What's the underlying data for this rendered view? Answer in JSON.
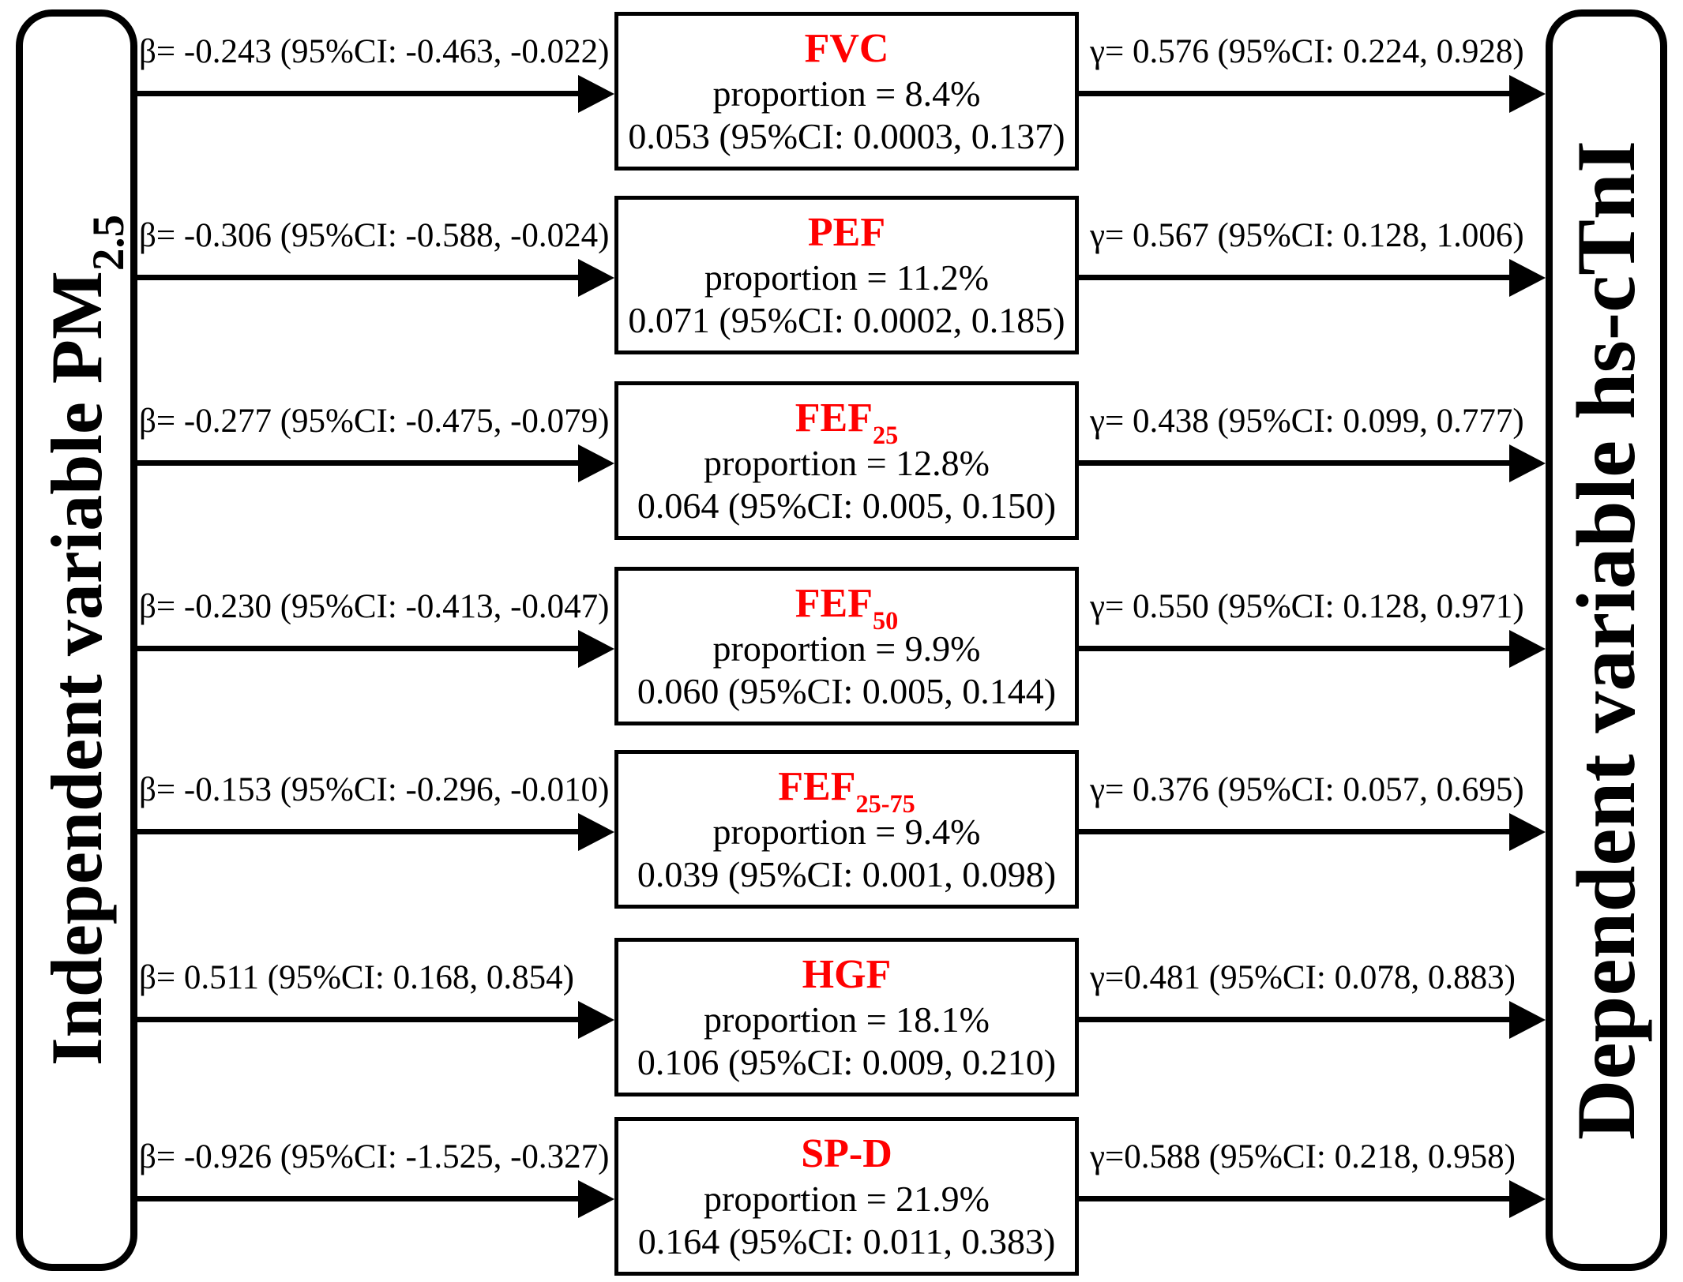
{
  "figure": {
    "independent_variable": {
      "text": "Independent variable PM",
      "sub": "2.5"
    },
    "dependent_variable": {
      "text": "Dependent variable hs-cTnI",
      "sub": ""
    },
    "colors": {
      "mediator_name": "#ff0000",
      "diagram_ink": "#000000",
      "background": "#ffffff"
    }
  },
  "mediators": [
    {
      "beta": "β= -0.243 (95%CI: -0.463, -0.022)",
      "name": "FVC",
      "name_sub": "",
      "proportion": "proportion = 8.4%",
      "indirect_effect": "0.053 (95%CI: 0.0003, 0.137)",
      "gamma": "γ= 0.576 (95%CI: 0.224, 0.928)"
    },
    {
      "beta": "β= -0.306 (95%CI: -0.588, -0.024)",
      "name": "PEF",
      "name_sub": "",
      "proportion": "proportion = 11.2%",
      "indirect_effect": "0.071 (95%CI: 0.0002, 0.185)",
      "gamma": "γ= 0.567 (95%CI: 0.128, 1.006)"
    },
    {
      "beta": "β= -0.277 (95%CI: -0.475, -0.079)",
      "name": "FEF",
      "name_sub": "25",
      "proportion": "proportion = 12.8%",
      "indirect_effect": "0.064 (95%CI: 0.005, 0.150)",
      "gamma": "γ= 0.438 (95%CI: 0.099, 0.777)"
    },
    {
      "beta": "β= -0.230 (95%CI: -0.413, -0.047)",
      "name": "FEF",
      "name_sub": "50",
      "proportion": "proportion = 9.9%",
      "indirect_effect": "0.060 (95%CI: 0.005, 0.144)",
      "gamma": "γ= 0.550 (95%CI: 0.128, 0.971)"
    },
    {
      "beta": "β= -0.153 (95%CI: -0.296, -0.010)",
      "name": "FEF",
      "name_sub": "25-75",
      "proportion": "proportion = 9.4%",
      "indirect_effect": "0.039 (95%CI: 0.001, 0.098)",
      "gamma": "γ= 0.376 (95%CI: 0.057, 0.695)"
    },
    {
      "beta": "β= 0.511 (95%CI: 0.168, 0.854)",
      "name": "HGF",
      "name_sub": "",
      "proportion": "proportion = 18.1%",
      "indirect_effect": "0.106 (95%CI: 0.009, 0.210)",
      "gamma": "γ=0.481 (95%CI: 0.078, 0.883)"
    },
    {
      "beta": "β= -0.926 (95%CI: -1.525, -0.327)",
      "name": "SP-D",
      "name_sub": "",
      "proportion": "proportion = 21.9%",
      "indirect_effect": "0.164 (95%CI: 0.011, 0.383)",
      "gamma": "γ=0.588 (95%CI: 0.218, 0.958)"
    }
  ]
}
